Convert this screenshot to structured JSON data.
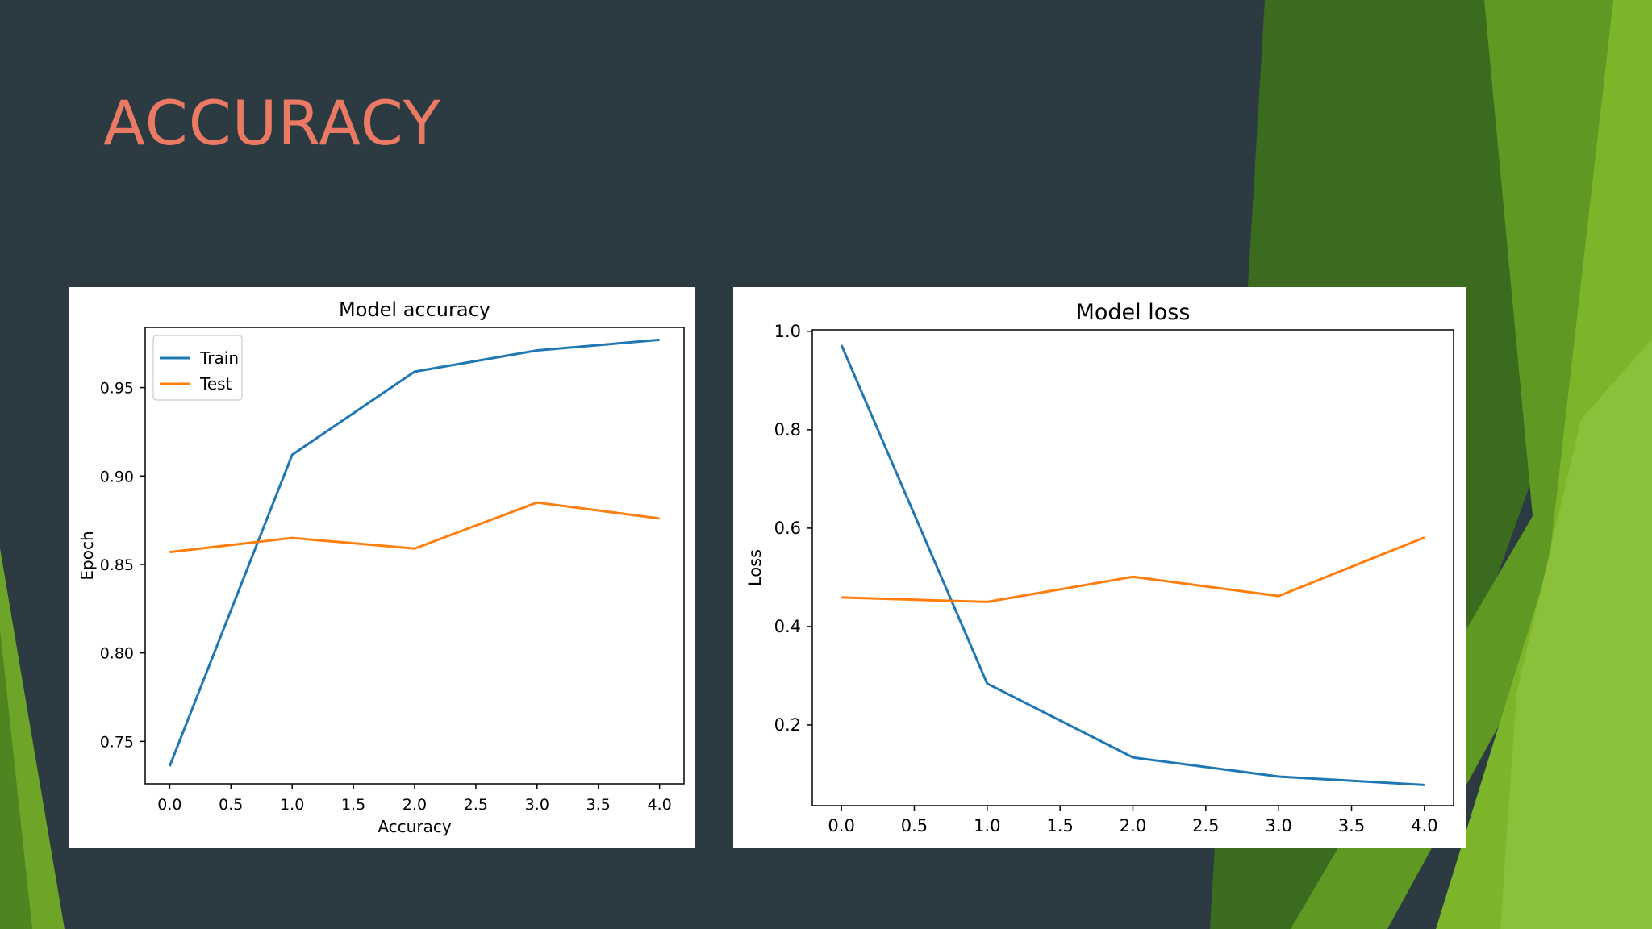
{
  "slide": {
    "title": "ACCURACY",
    "colors": {
      "background": "#2c3b42",
      "title": "#ea7a63",
      "accent_greens": [
        "#3b6b1e",
        "#5f9822",
        "#7cb42a",
        "#8bc13a"
      ]
    }
  },
  "chart_data": [
    {
      "type": "line",
      "title": "Model accuracy",
      "xlabel": "Accuracy",
      "ylabel": "Epoch",
      "x": [
        0,
        1,
        2,
        3,
        4
      ],
      "xlim": [
        -0.2,
        4.2
      ],
      "ylim": [
        0.726,
        0.984
      ],
      "xticks": [
        0,
        0.5,
        1,
        1.5,
        2,
        2.5,
        3,
        3.5,
        4
      ],
      "xtick_labels": [
        "0.0",
        "0.5",
        "1.0",
        "1.5",
        "2.0",
        "2.5",
        "3.0",
        "3.5",
        "4.0"
      ],
      "yticks": [
        0.75,
        0.8,
        0.85,
        0.9,
        0.95
      ],
      "ytick_labels": [
        "0.75",
        "0.80",
        "0.85",
        "0.90",
        "0.95"
      ],
      "legend": "top-left",
      "grid": false,
      "series": [
        {
          "name": "Train",
          "color": "#1f77b4",
          "values": [
            0.736,
            0.912,
            0.959,
            0.971,
            0.977
          ]
        },
        {
          "name": "Test",
          "color": "#ff7f0e",
          "values": [
            0.857,
            0.865,
            0.859,
            0.885,
            0.876
          ]
        }
      ]
    },
    {
      "type": "line",
      "title": "Model loss",
      "xlabel": "",
      "ylabel": "Loss",
      "x": [
        0,
        1,
        2,
        3,
        4
      ],
      "xlim": [
        -0.2,
        4.2
      ],
      "ylim": [
        0.036,
        1.003
      ],
      "xticks": [
        0,
        0.5,
        1,
        1.5,
        2,
        2.5,
        3,
        3.5,
        4
      ],
      "xtick_labels": [
        "0.0",
        "0.5",
        "1.0",
        "1.5",
        "2.0",
        "2.5",
        "3.0",
        "3.5",
        "4.0"
      ],
      "yticks": [
        0.2,
        0.4,
        0.6,
        0.8,
        1.0
      ],
      "ytick_labels": [
        "0.2",
        "0.4",
        "0.6",
        "0.8",
        "1.0"
      ],
      "legend": "none",
      "grid": false,
      "series": [
        {
          "color": "#1f77b4",
          "values": [
            0.972,
            0.284,
            0.134,
            0.095,
            0.078
          ]
        },
        {
          "color": "#ff7f0e",
          "values": [
            0.459,
            0.45,
            0.501,
            0.462,
            0.581
          ]
        }
      ]
    }
  ]
}
